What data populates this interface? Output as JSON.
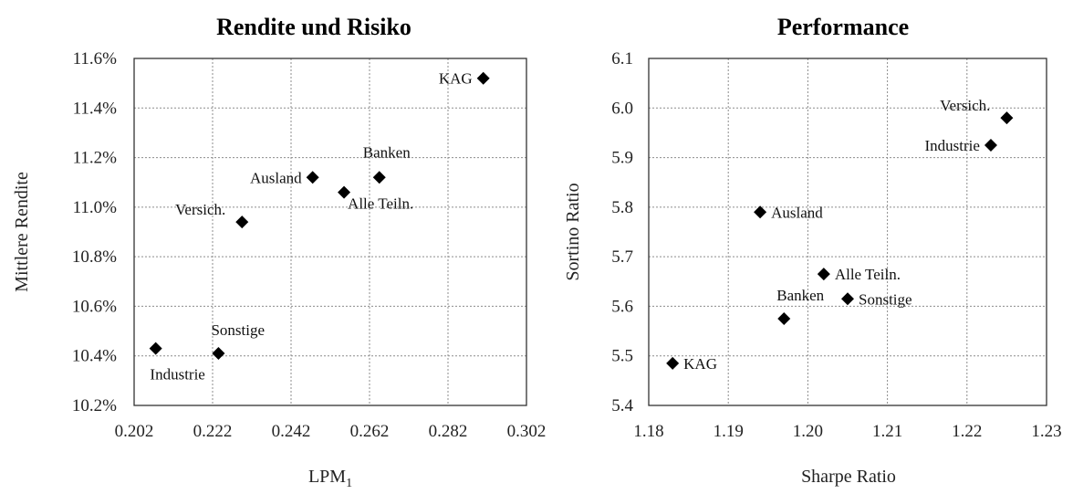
{
  "chart_data": [
    {
      "type": "scatter",
      "title": "Rendite und Risiko",
      "xlabel": "LPM",
      "xlabel_sub": "1",
      "ylabel": "Mittlere Rendite",
      "xlim": [
        0.202,
        0.302
      ],
      "ylim": [
        10.2,
        11.6
      ],
      "xticks": [
        "0.202",
        "0.222",
        "0.242",
        "0.262",
        "0.282",
        "0.302"
      ],
      "yticks": [
        "10.2%",
        "10.4%",
        "10.6%",
        "10.8%",
        "11.0%",
        "11.2%",
        "11.4%",
        "11.6%"
      ],
      "grid": true,
      "points": [
        {
          "label": "KAG",
          "x": 0.291,
          "y": 11.52,
          "label_pos": "left"
        },
        {
          "label": "Banken",
          "x": 0.2645,
          "y": 11.12,
          "label_pos": "above"
        },
        {
          "label": "Ausland",
          "x": 0.2475,
          "y": 11.12,
          "label_pos": "left"
        },
        {
          "label": "Alle Teiln.",
          "x": 0.2555,
          "y": 11.06,
          "label_pos": "below-right"
        },
        {
          "label": "Versich.",
          "x": 0.2295,
          "y": 10.94,
          "label_pos": "above-left"
        },
        {
          "label": "Industrie",
          "x": 0.2075,
          "y": 10.43,
          "label_pos": "below"
        },
        {
          "label": "Sonstige",
          "x": 0.2235,
          "y": 10.41,
          "label_pos": "above-right"
        }
      ]
    },
    {
      "type": "scatter",
      "title": "Performance",
      "xlabel": "Sharpe Ratio",
      "ylabel": "Sortino Ratio",
      "xlim": [
        1.18,
        1.23
      ],
      "ylim": [
        5.4,
        6.1
      ],
      "xticks": [
        "1.18",
        "1.19",
        "1.20",
        "1.21",
        "1.22",
        "1.23"
      ],
      "yticks": [
        "5.4",
        "5.5",
        "5.6",
        "5.7",
        "5.8",
        "5.9",
        "6.0",
        "6.1"
      ],
      "grid": true,
      "points": [
        {
          "label": "Versich.",
          "x": 1.225,
          "y": 5.98,
          "label_pos": "above-left"
        },
        {
          "label": "Industrie",
          "x": 1.223,
          "y": 5.925,
          "label_pos": "left"
        },
        {
          "label": "Ausland",
          "x": 1.194,
          "y": 5.79,
          "label_pos": "right"
        },
        {
          "label": "Alle Teiln.",
          "x": 1.202,
          "y": 5.665,
          "label_pos": "right"
        },
        {
          "label": "Sonstige",
          "x": 1.205,
          "y": 5.615,
          "label_pos": "right"
        },
        {
          "label": "Banken",
          "x": 1.197,
          "y": 5.575,
          "label_pos": "above-right"
        },
        {
          "label": "KAG",
          "x": 1.183,
          "y": 5.485,
          "label_pos": "right"
        }
      ]
    }
  ]
}
